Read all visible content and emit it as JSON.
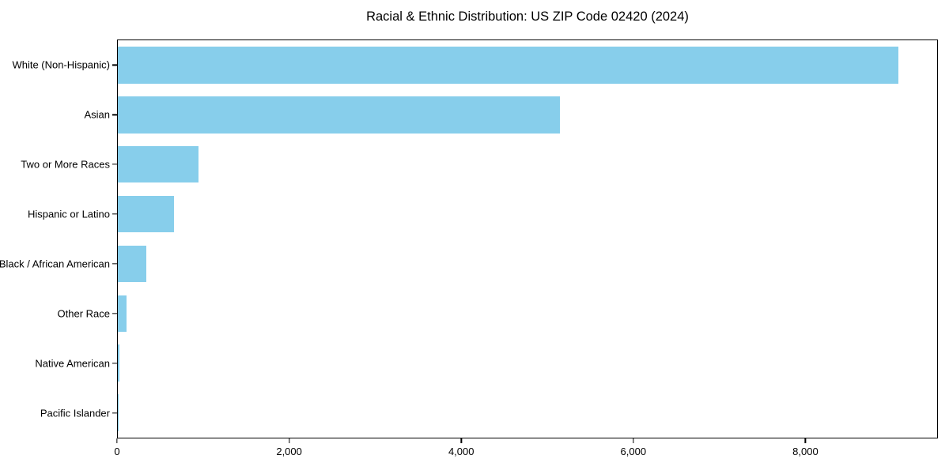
{
  "chart_data": {
    "type": "bar",
    "orientation": "horizontal",
    "title": "Racial & Ethnic Distribution: US ZIP Code 02420 (2024)",
    "categories": [
      "White (Non-Hispanic)",
      "Asian",
      "Two or More Races",
      "Hispanic or Latino",
      "Black / African American",
      "Other Race",
      "Native American",
      "Pacific Islander"
    ],
    "values": [
      9085,
      5150,
      940,
      650,
      330,
      100,
      15,
      5
    ],
    "xlabel": "",
    "ylabel": "",
    "xlim": [
      0,
      9540
    ],
    "xticks": [
      0,
      2000,
      4000,
      6000,
      8000
    ],
    "xtick_labels": [
      "0",
      "2,000",
      "4,000",
      "6,000",
      "8,000"
    ],
    "bar_color": "#87CEEB",
    "axis_color": "#000000",
    "background_color": "#ffffff",
    "grid": false,
    "legend": "none"
  }
}
